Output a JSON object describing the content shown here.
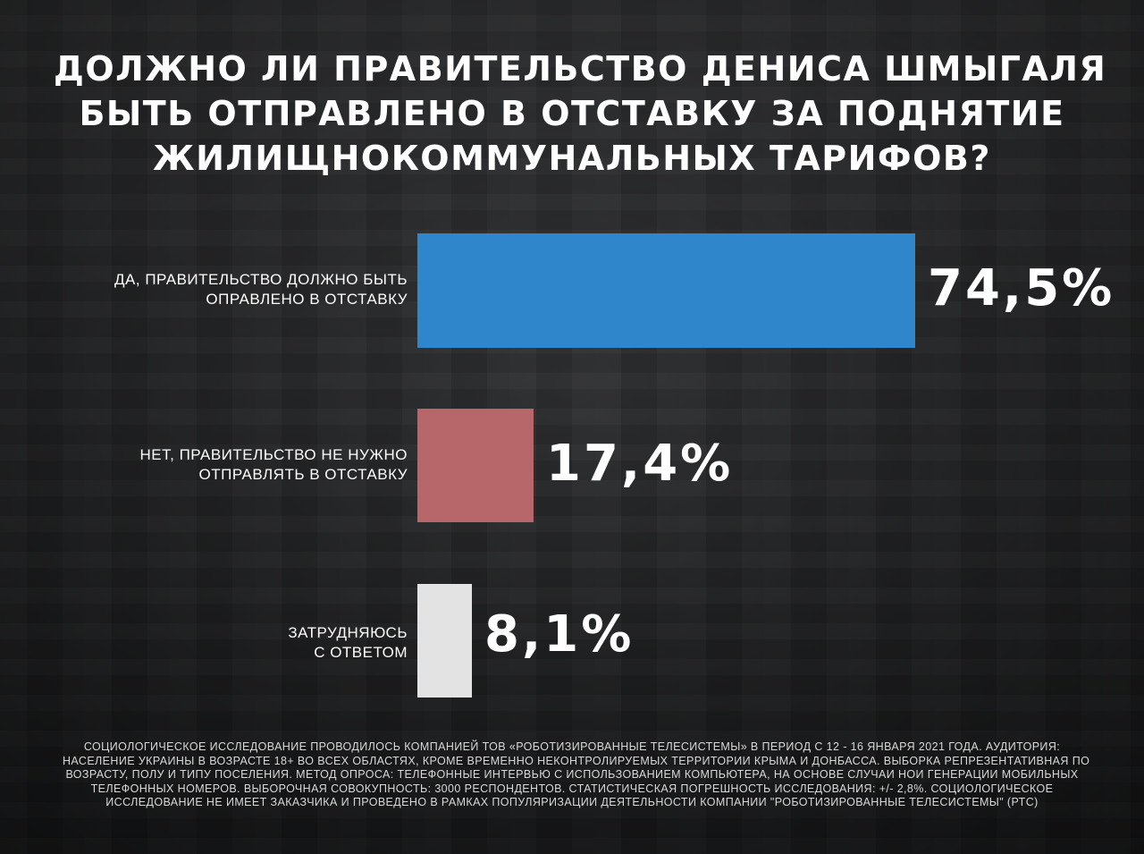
{
  "title_lines": [
    "ДОЛЖНО ЛИ ПРАВИТЕЛЬСТВО ДЕНИСА ШМЫГАЛЯ",
    "БЫТЬ ОТПРАВЛЕНО В ОТСТАВКУ ЗА ПОДНЯТИЕ",
    "ЖИЛИЩНОКОММУНАЛЬНЫХ ТАРИФОВ?"
  ],
  "chart_data": {
    "type": "bar",
    "orientation": "horizontal",
    "title": "ДОЛЖНО ЛИ ПРАВИТЕЛЬСТВО ДЕНИСА ШМЫГАЛЯ БЫТЬ ОТПРАВЛЕНО В ОТСТАВКУ ЗА ПОДНЯТИЕ ЖИЛИЩНОКОММУНАЛЬНЫХ ТАРИФОВ?",
    "categories": [
      [
        "ДА, ПРАВИТЕЛЬСТВО ДОЛЖНО БЫТЬ",
        "ОПРАВЛЕНО В ОТСТАВКУ"
      ],
      [
        "НЕТ, ПРАВИТЕЛЬСТВО НЕ НУЖНО",
        "ОТПРАВЛЯТЬ В ОТСТАВКУ"
      ],
      [
        "ЗАТРУДНЯЮСЬ",
        "С ОТВЕТОМ"
      ]
    ],
    "values": [
      74.5,
      17.4,
      8.1
    ],
    "value_labels": [
      "74,5%",
      "17,4%",
      "8,1%"
    ],
    "colors": [
      "#2f86cb",
      "#b7666a",
      "#e3e3e3"
    ],
    "unit": "%",
    "grid": false,
    "legend": "none"
  },
  "footnote_lines": [
    "СОЦИОЛОГИЧЕСКОЕ ИССЛЕДОВАНИЕ ПРОВОДИЛОСЬ КОМПАНИЕЙ   ТОВ «РОБОТИЗИРОВАННЫЕ ТЕЛЕСИСТЕМЫ» В ПЕРИОД С 12 - 16 ЯНВАРЯ 2021 ГОДА. АУДИТОРИЯ:",
    "НАСЕЛЕНИЕ УКРАИНЫ В ВОЗРАСТЕ 18+ ВО ВСЕХ ОБЛАСТЯХ, КРОМЕ ВРЕМЕННО НЕКОНТРОЛИРУЕМЫХ ТЕРРИТОРИИ   КРЫМА И ДОНБАССА. ВЫБОРКА РЕПРЕЗЕНТАТИВНАЯ ПО",
    "ВОЗРАСТУ, ПОЛУ И ТИПУ ПОСЕЛЕНИЯ. МЕТОД ОПРОСА: ТЕЛЕФОННЫЕ ИНТЕРВЬЮ С ИСПОЛЬЗОВАНИЕМ КОМПЬЮТЕРА, НА ОСНОВЕ СЛУЧАИ  НОИ   ГЕНЕРАЦИИ МОБИЛЬНЫХ",
    "ТЕЛЕФОННЫХ НОМЕРОВ. ВЫБОРОЧНАЯ СОВОКУПНОСТЬ: 3000 РЕСПОНДЕНТОВ. СТАТИСТИЧЕСКАЯ ПОГРЕШНОСТЬ ИССЛЕДОВАНИЯ: +/- 2,8%. СОЦИОЛОГИЧЕСКОЕ",
    "ИССЛЕДОВАНИЕ НЕ ИМЕЕТ ЗАКАЗЧИКА И ПРОВЕДЕНО В РАМКАХ ПОПУЛЯРИЗАЦИИ ДЕЯТЕЛЬНОСТИ КОМПАНИИ \"РОБОТИЗИРОВАННЫЕ ТЕЛЕСИСТЕМЫ\" (РТС)"
  ]
}
